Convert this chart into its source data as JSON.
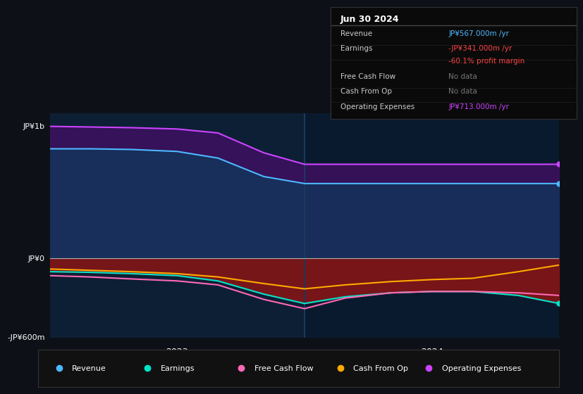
{
  "bg_color": "#0d1117",
  "plot_bg_color": "#0d1f35",
  "plot_bg_color_right": "#0a1a2e",
  "title_box_date": "Jun 30 2024",
  "ylabel_top": "JP¥1b",
  "ylabel_zero": "JP¥0",
  "ylabel_bottom": "-JP¥600m",
  "x_labels": [
    "2023",
    "2024"
  ],
  "ylim": [
    -600,
    1100
  ],
  "revenue_color": "#4db8ff",
  "earnings_color": "#00e5cc",
  "fcf_color": "#ff69b4",
  "cashfromop_color": "#ffaa00",
  "opex_color": "#cc44ff",
  "legend_items": [
    {
      "label": "Revenue",
      "color": "#4db8ff"
    },
    {
      "label": "Earnings",
      "color": "#00e5cc"
    },
    {
      "label": "Free Cash Flow",
      "color": "#ff69b4"
    },
    {
      "label": "Cash From Op",
      "color": "#ffaa00"
    },
    {
      "label": "Operating Expenses",
      "color": "#cc44ff"
    }
  ],
  "revenue_x": [
    0.0,
    0.08,
    0.16,
    0.25,
    0.33,
    0.42,
    0.5,
    0.58,
    0.67,
    0.75,
    0.83,
    0.92,
    1.0
  ],
  "revenue_y": [
    830,
    830,
    825,
    810,
    760,
    620,
    567,
    567,
    567,
    567,
    567,
    567,
    567
  ],
  "opex_x": [
    0.0,
    0.08,
    0.16,
    0.25,
    0.33,
    0.42,
    0.5,
    0.58,
    0.67,
    0.75,
    0.83,
    0.92,
    1.0
  ],
  "opex_y": [
    1000,
    995,
    990,
    980,
    950,
    800,
    713,
    713,
    713,
    713,
    713,
    713,
    713
  ],
  "earnings_x": [
    0.0,
    0.08,
    0.16,
    0.25,
    0.33,
    0.42,
    0.5,
    0.58,
    0.67,
    0.75,
    0.83,
    0.92,
    1.0
  ],
  "earnings_y": [
    -100,
    -105,
    -115,
    -130,
    -170,
    -270,
    -341,
    -290,
    -260,
    -250,
    -250,
    -280,
    -341
  ],
  "fcf_x": [
    0.0,
    0.08,
    0.16,
    0.25,
    0.33,
    0.42,
    0.5,
    0.58,
    0.67,
    0.75,
    0.83,
    0.92,
    1.0
  ],
  "fcf_y": [
    -130,
    -140,
    -155,
    -170,
    -200,
    -310,
    -380,
    -300,
    -260,
    -250,
    -250,
    -260,
    -280
  ],
  "cashop_x": [
    0.0,
    0.08,
    0.16,
    0.25,
    0.33,
    0.42,
    0.5,
    0.58,
    0.67,
    0.75,
    0.83,
    0.92,
    1.0
  ],
  "cashop_y": [
    -80,
    -90,
    -100,
    -115,
    -140,
    -190,
    -230,
    -200,
    -175,
    -160,
    -150,
    -100,
    -50
  ]
}
